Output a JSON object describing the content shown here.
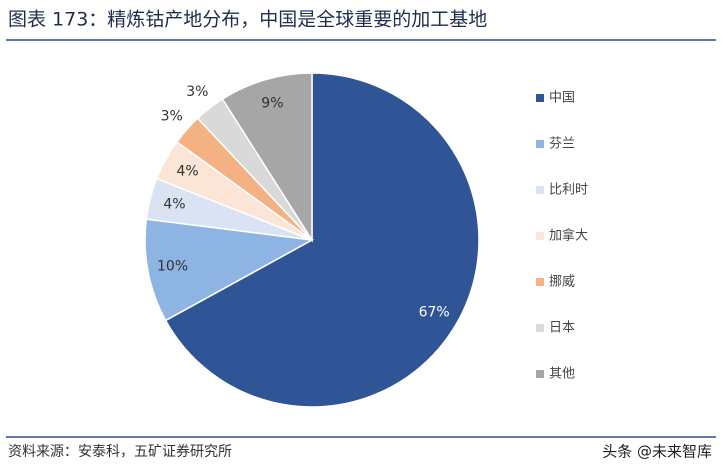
{
  "chart_data": {
    "type": "pie",
    "title": "图表 173：精炼钴产地分布，中国是全球重要的加工基地",
    "categories": [
      "中国",
      "芬兰",
      "比利时",
      "加拿大",
      "挪威",
      "日本",
      "其他"
    ],
    "values": [
      67,
      10,
      4,
      4,
      3,
      3,
      9
    ],
    "value_labels": [
      "67%",
      "10%",
      "4%",
      "4%",
      "3%",
      "3%",
      "9%"
    ],
    "colors": [
      "#2f5597",
      "#8eb4e3",
      "#dae3f3",
      "#fbe5d6",
      "#f4b183",
      "#d9d9d9",
      "#a6a6a6"
    ],
    "legend": "right",
    "source": "资料来源：安泰科，五矿证券研究所",
    "watermark": "头条 @未来智库"
  }
}
